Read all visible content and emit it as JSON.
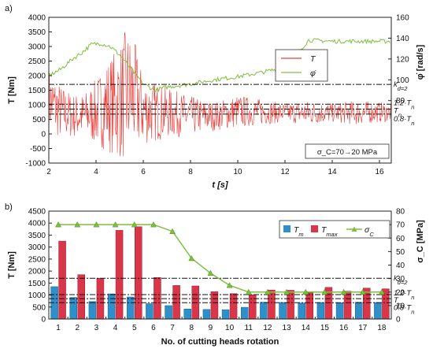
{
  "chart_data": [
    {
      "panel_label": "a)",
      "type": "line",
      "xlabel": "t [s]",
      "ylabel": "T [Nm]",
      "y2label": "φ̇ [rad/s]",
      "xlim": [
        2,
        16.5
      ],
      "ylim": [
        -1000,
        4000
      ],
      "y2lim": [
        20,
        160
      ],
      "xticks": [
        "2",
        "4",
        "6",
        "8",
        "10",
        "12",
        "14",
        "16"
      ],
      "yticks": [
        "-1000",
        "-500",
        "0",
        "500",
        "1000",
        "1500",
        "2000",
        "2500",
        "3000",
        "3500",
        "4000"
      ],
      "y2ticks": [
        "80",
        "100",
        "120",
        "140",
        "160"
      ],
      "grid": false,
      "legend_position": "center-right",
      "legend": [
        "T",
        "φ̇"
      ],
      "series": [
        {
          "name": "T",
          "color": "#e8413c",
          "envelope": {
            "t": [
              2,
              2.5,
              3,
              3.5,
              4,
              4.5,
              5,
              5.3,
              5.6,
              6,
              7,
              8,
              9,
              10,
              11,
              12,
              13,
              14,
              15,
              16,
              16.4
            ],
            "upper": [
              2300,
              1700,
              1400,
              1400,
              1900,
              2600,
              3100,
              3700,
              3300,
              2000,
              1600,
              1300,
              1100,
              1350,
              1200,
              1050,
              1150,
              1050,
              1150,
              1100,
              1050
            ],
            "lower": [
              0,
              -200,
              -150,
              -150,
              -400,
              -600,
              -900,
              -950,
              -700,
              -400,
              -150,
              -50,
              100,
              200,
              300,
              400,
              300,
              400,
              300,
              400,
              400
            ]
          }
        },
        {
          "name": "φ̇",
          "color": "#7fbf3f",
          "axis": "right",
          "t": [
            2,
            2.5,
            3,
            3.4,
            3.8,
            4.2,
            4.6,
            5,
            5.5,
            6,
            6.5,
            7,
            8,
            9,
            10,
            11,
            12,
            13,
            14,
            15,
            16,
            16.4
          ],
          "values": [
            104,
            110,
            120,
            126,
            134,
            135,
            132,
            124,
            110,
            96,
            90,
            93,
            96,
            100,
            103,
            107,
            112,
            138,
            137,
            137,
            137,
            137
          ]
        }
      ],
      "reference_lines": [
        {
          "label": "k_d=2",
          "value": 1700
        },
        {
          "label": "1.2·T_n",
          "value": 1020
        },
        {
          "label": "T_n",
          "value": 850
        },
        {
          "label": "0.8·T_n",
          "value": 680
        }
      ],
      "annotations": [
        "σ_C=70→20 MPa"
      ]
    },
    {
      "panel_label": "b)",
      "type": "bar",
      "xlabel": "No. of cutting heads rotation",
      "ylabel": "T [Nm]",
      "y2label": "σ_C [MPa]",
      "ylim": [
        0,
        4500
      ],
      "y2lim": [
        0,
        80
      ],
      "yticks": [
        "0",
        "500",
        "1000",
        "1500",
        "2000",
        "2500",
        "3000",
        "3500",
        "4000",
        "4500"
      ],
      "y2ticks": [
        "0",
        "10",
        "20",
        "30",
        "40",
        "50",
        "60",
        "70",
        "80"
      ],
      "grid": false,
      "legend_position": "top-right",
      "categories": [
        "1",
        "2",
        "3",
        "4",
        "5",
        "6",
        "7",
        "8",
        "9",
        "10",
        "11",
        "12",
        "13",
        "14",
        "15",
        "16",
        "17",
        "18"
      ],
      "series": [
        {
          "name": "T_m",
          "color": "#2e8fc9",
          "values": [
            1350,
            900,
            730,
            1050,
            920,
            640,
            560,
            420,
            400,
            390,
            490,
            700,
            690,
            670,
            690,
            680,
            700,
            690
          ]
        },
        {
          "name": "T_max",
          "color": "#d9364a",
          "values": [
            3250,
            1850,
            1700,
            3700,
            3850,
            1730,
            1400,
            1380,
            1140,
            1060,
            1010,
            1210,
            1200,
            1100,
            1320,
            1160,
            1290,
            1260
          ]
        },
        {
          "name": "σ_C",
          "color": "#7fbf3f",
          "axis": "right",
          "type": "line",
          "values": [
            70,
            70,
            70,
            70,
            70,
            70,
            65,
            45,
            34,
            25,
            20,
            20,
            20,
            20,
            20,
            20,
            20,
            20
          ]
        }
      ],
      "reference_lines": [
        {
          "label": "k_d=2",
          "value": 1700
        },
        {
          "label": "1.2·T_n",
          "value": 1020
        },
        {
          "label": "T_n",
          "value": 850
        },
        {
          "label": "0.8·T_n",
          "value": 680
        }
      ]
    }
  ]
}
